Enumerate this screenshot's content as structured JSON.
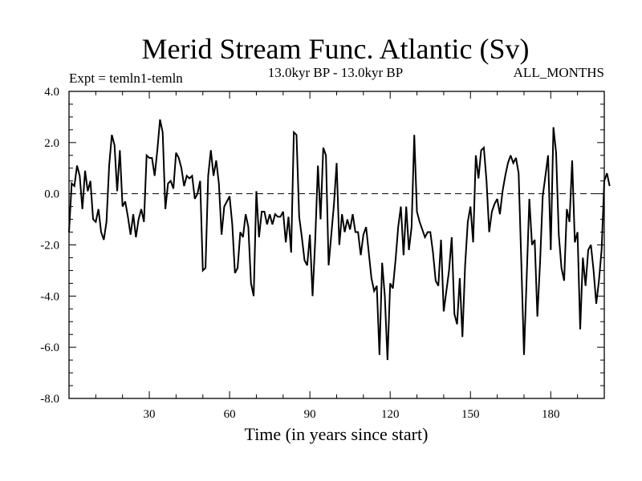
{
  "chart_data": {
    "type": "line",
    "title": "Merid Stream Func. Atlantic (Sv)",
    "subtitle_left": "Expt = temln1-temln",
    "subtitle_center": "13.0kyr BP - 13.0kyr BP",
    "subtitle_right": "ALL_MONTHS",
    "xlabel": "Time (in years since start)",
    "ylabel": "",
    "xlim": [
      0,
      200
    ],
    "ylim": [
      -8,
      4
    ],
    "x_ticks": [
      30,
      60,
      90,
      120,
      150,
      180
    ],
    "y_ticks": [
      {
        "value": 4,
        "label": "4.0"
      },
      {
        "value": 2,
        "label": "2.0"
      },
      {
        "value": 0,
        "label": "0.0"
      },
      {
        "value": -2,
        "label": "-2.0"
      },
      {
        "value": -4,
        "label": "-4.0"
      },
      {
        "value": -6,
        "label": "-6.0"
      },
      {
        "value": -8,
        "label": "-8.0"
      }
    ],
    "reference_line": {
      "y": 0,
      "style": "dashed"
    },
    "series": [
      {
        "name": "Merid Stream Func. Atlantic",
        "x_start": 0,
        "x_step": 1,
        "values": [
          -1.5,
          0.4,
          0.3,
          1.1,
          0.7,
          -0.6,
          0.9,
          0.1,
          0.5,
          -1.0,
          -1.1,
          -0.6,
          -1.5,
          -1.8,
          -1.1,
          1.1,
          2.3,
          1.9,
          0.1,
          1.7,
          -0.5,
          -0.3,
          -0.9,
          -1.6,
          -0.8,
          -1.7,
          -1.0,
          -0.6,
          -1.1,
          1.5,
          1.4,
          1.4,
          0.7,
          1.7,
          2.9,
          2.4,
          -0.6,
          0.4,
          0.5,
          0.2,
          1.6,
          1.4,
          1.0,
          0.3,
          0.7,
          0.6,
          0.7,
          -0.2,
          0.0,
          0.5,
          -3.0,
          -2.9,
          0.7,
          1.7,
          0.7,
          1.3,
          0.4,
          -1.6,
          -0.5,
          -0.3,
          -0.1,
          -1.2,
          -3.1,
          -2.9,
          -1.5,
          -1.7,
          -0.8,
          -1.3,
          -3.5,
          -4.0,
          0.1,
          -1.7,
          -0.7,
          -0.7,
          -1.2,
          -0.8,
          -1.2,
          -0.8,
          -0.9,
          -0.9,
          -0.7,
          -1.9,
          -0.9,
          -2.3,
          2.4,
          2.3,
          -0.9,
          -1.7,
          -2.6,
          -2.8,
          -1.6,
          -4.0,
          -1.8,
          1.1,
          -1.0,
          1.8,
          1.5,
          -2.8,
          -1.6,
          -0.4,
          1.2,
          -2.0,
          -0.8,
          -1.5,
          -1.0,
          -1.4,
          -0.8,
          -1.5,
          -1.5,
          -2.4,
          -1.6,
          -1.3,
          -2.3,
          -3.3,
          -3.8,
          -3.6,
          -6.3,
          -2.7,
          -4.0,
          -6.5,
          -3.5,
          -3.7,
          -2.6,
          -1.3,
          -0.5,
          -2.4,
          -0.5,
          -2.2,
          -1.3,
          2.3,
          -0.7,
          -1.1,
          -1.4,
          -1.7,
          -1.5,
          -1.5,
          -2.3,
          -3.4,
          -3.6,
          -1.8,
          -4.6,
          -3.8,
          -3.0,
          -1.7,
          -4.7,
          -5.1,
          -3.3,
          -5.6,
          -2.8,
          -1.1,
          -0.5,
          -1.9,
          1.5,
          0.6,
          1.7,
          1.8,
          0.5,
          -1.5,
          -0.7,
          -0.4,
          -0.2,
          -0.8,
          0.1,
          0.7,
          1.2,
          1.5,
          1.2,
          1.4,
          0.8,
          -2.7,
          -6.3,
          -3.3,
          -0.2,
          -2.0,
          -1.8,
          -4.8,
          -2.7,
          -0.1,
          0.7,
          1.5,
          -2.2,
          2.6,
          1.6,
          -1.6,
          -2.9,
          -3.4,
          -0.6,
          -1.1,
          1.3,
          -1.9,
          -1.5,
          -5.3,
          -2.5,
          -3.6,
          -2.2,
          -2.0,
          -3.0,
          -4.3,
          -3.4,
          -2.2,
          0.5,
          0.8,
          0.3
        ]
      }
    ]
  }
}
